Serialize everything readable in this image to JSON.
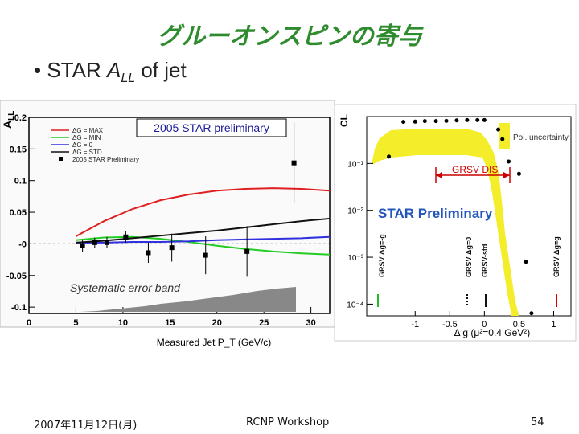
{
  "slide": {
    "title": "グルーオンスピンの寄与",
    "bullet_prefix": "STAR ",
    "bullet_symbol": "A",
    "bullet_sub": "LL",
    "bullet_suffix": " of jet",
    "footer_date": "2007年11月12日(月)",
    "footer_center": "RCNP Workshop",
    "footer_page": "54"
  },
  "chart_data": [
    {
      "type": "line",
      "title": "2005 STAR preliminary",
      "xlabel": "Measured Jet P_T (GeV/c)",
      "ylabel": "A_LL",
      "xlim": [
        0,
        32
      ],
      "ylim": [
        -0.11,
        0.2
      ],
      "xticks": [
        "0",
        "5",
        "10",
        "15",
        "20",
        "25",
        "30"
      ],
      "yticks": [
        "-0.1",
        "-0.05",
        "-0",
        "0.05",
        "0.1",
        "0.15",
        "0.2"
      ],
      "annotation": "Systematic error band",
      "legend": [
        "ΔG = MAX",
        "ΔG = MIN",
        "ΔG = 0",
        "ΔG = STD",
        "2005 STAR Preliminary"
      ],
      "series": [
        {
          "name": "ΔG = MAX",
          "color": "#e02020",
          "x": [
            5,
            8,
            11,
            14,
            17,
            20,
            23,
            26,
            29,
            32
          ],
          "y": [
            0.012,
            0.036,
            0.055,
            0.069,
            0.078,
            0.084,
            0.087,
            0.088,
            0.087,
            0.084
          ]
        },
        {
          "name": "ΔG = MIN",
          "color": "#22cc22",
          "x": [
            5,
            8,
            11,
            14,
            17,
            20,
            23,
            26,
            29,
            32
          ],
          "y": [
            0.006,
            0.01,
            0.011,
            0.008,
            0.003,
            -0.003,
            -0.008,
            -0.012,
            -0.015,
            -0.017
          ]
        },
        {
          "name": "ΔG = 0",
          "color": "#3030dd",
          "x": [
            5,
            8,
            11,
            14,
            17,
            20,
            23,
            26,
            29,
            32
          ],
          "y": [
            0.002,
            0.002,
            0.003,
            0.003,
            0.004,
            0.006,
            0.007,
            0.008,
            0.009,
            0.011
          ]
        },
        {
          "name": "ΔG = STD",
          "color": "#111111",
          "x": [
            5,
            8,
            11,
            14,
            17,
            20,
            23,
            26,
            29,
            32
          ],
          "y": [
            0.002,
            0.005,
            0.009,
            0.013,
            0.017,
            0.021,
            0.026,
            0.031,
            0.036,
            0.04
          ]
        }
      ],
      "points": {
        "name": "2005 STAR Preliminary",
        "x": [
          5.7,
          7,
          8.3,
          10.3,
          12.7,
          15.2,
          18.8,
          23.2,
          28.2
        ],
        "y": [
          -0.003,
          0.002,
          0.002,
          0.011,
          -0.014,
          -0.006,
          -0.018,
          -0.012,
          0.128
        ],
        "err": [
          0.01,
          0.008,
          0.009,
          0.009,
          0.016,
          0.022,
          0.03,
          0.04,
          0.064
        ]
      }
    },
    {
      "type": "scatter",
      "ylabel": "CL",
      "xlabel": "Δ g (μ²=0.4 GeV²)",
      "xlim": [
        -1.7,
        1.25
      ],
      "ylim_log": [
        -4.25,
        0
      ],
      "xticks": [
        "-1",
        "-0.5",
        "0",
        "0.5",
        "1"
      ],
      "yticks": [
        "10⁻¹",
        "10⁻²",
        "10⁻³",
        "10⁻⁴"
      ],
      "annotations": [
        "STAR Preliminary",
        "GRSV DIS",
        "Pol. uncertainty"
      ],
      "model_labels": [
        "GRSV Δg=-g",
        "GRSV Δg=0",
        "GRSV-std",
        "GRSV Δg=g"
      ],
      "points": {
        "x": [
          -1.38,
          -1.17,
          -1.0,
          -0.86,
          -0.7,
          -0.55,
          -0.4,
          -0.25,
          -0.1,
          0.0,
          0.2,
          0.26,
          0.35,
          0.5,
          0.6,
          0.68
        ],
        "cl": [
          0.14,
          0.77,
          0.78,
          0.8,
          0.8,
          0.81,
          0.83,
          0.84,
          0.84,
          0.84,
          0.53,
          0.33,
          0.11,
          0.06,
          0.0008,
          6.4e-05
        ]
      }
    }
  ]
}
